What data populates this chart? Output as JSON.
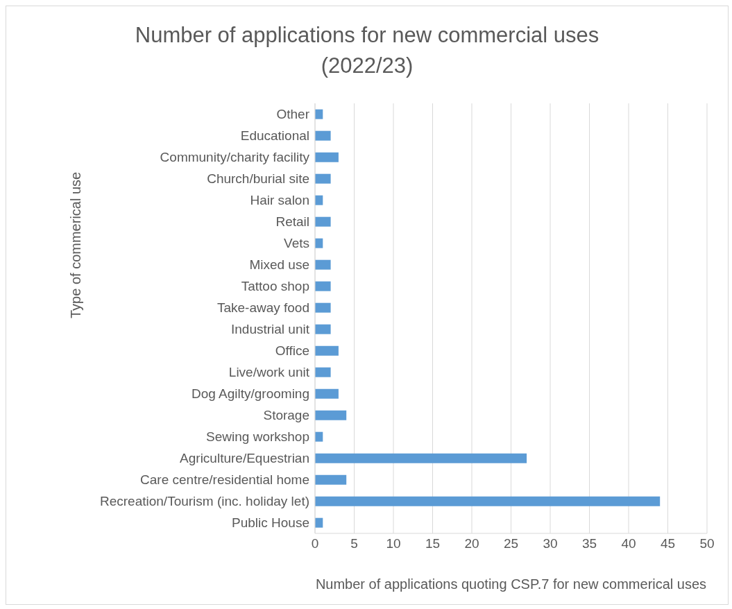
{
  "chart_data": {
    "type": "bar",
    "orientation": "horizontal",
    "title": "Number of applications for new commercial uses (2022/23)",
    "xlabel": "Number of applications quoting CSP.7 for new commerical uses",
    "ylabel": "Type of commerical use",
    "categories": [
      "Other",
      "Educational",
      "Community/charity facility",
      "Church/burial site",
      "Hair salon",
      "Retail",
      "Vets",
      "Mixed use",
      "Tattoo shop",
      "Take-away food",
      "Industrial unit",
      "Office",
      "Live/work unit",
      "Dog Agilty/grooming",
      "Storage",
      "Sewing workshop",
      "Agriculture/Equestrian",
      "Care centre/residential home",
      "Recreation/Tourism (inc. holiday let)",
      "Public House"
    ],
    "values": [
      1,
      2,
      3,
      2,
      1,
      2,
      1,
      2,
      2,
      2,
      2,
      3,
      2,
      3,
      4,
      1,
      27,
      4,
      44,
      1
    ],
    "color": "#5b9bd5",
    "xlim": [
      0,
      50
    ],
    "xticks": [
      0,
      5,
      10,
      15,
      20,
      25,
      30,
      35,
      40,
      45,
      50
    ],
    "grid": "x",
    "legend": false
  }
}
